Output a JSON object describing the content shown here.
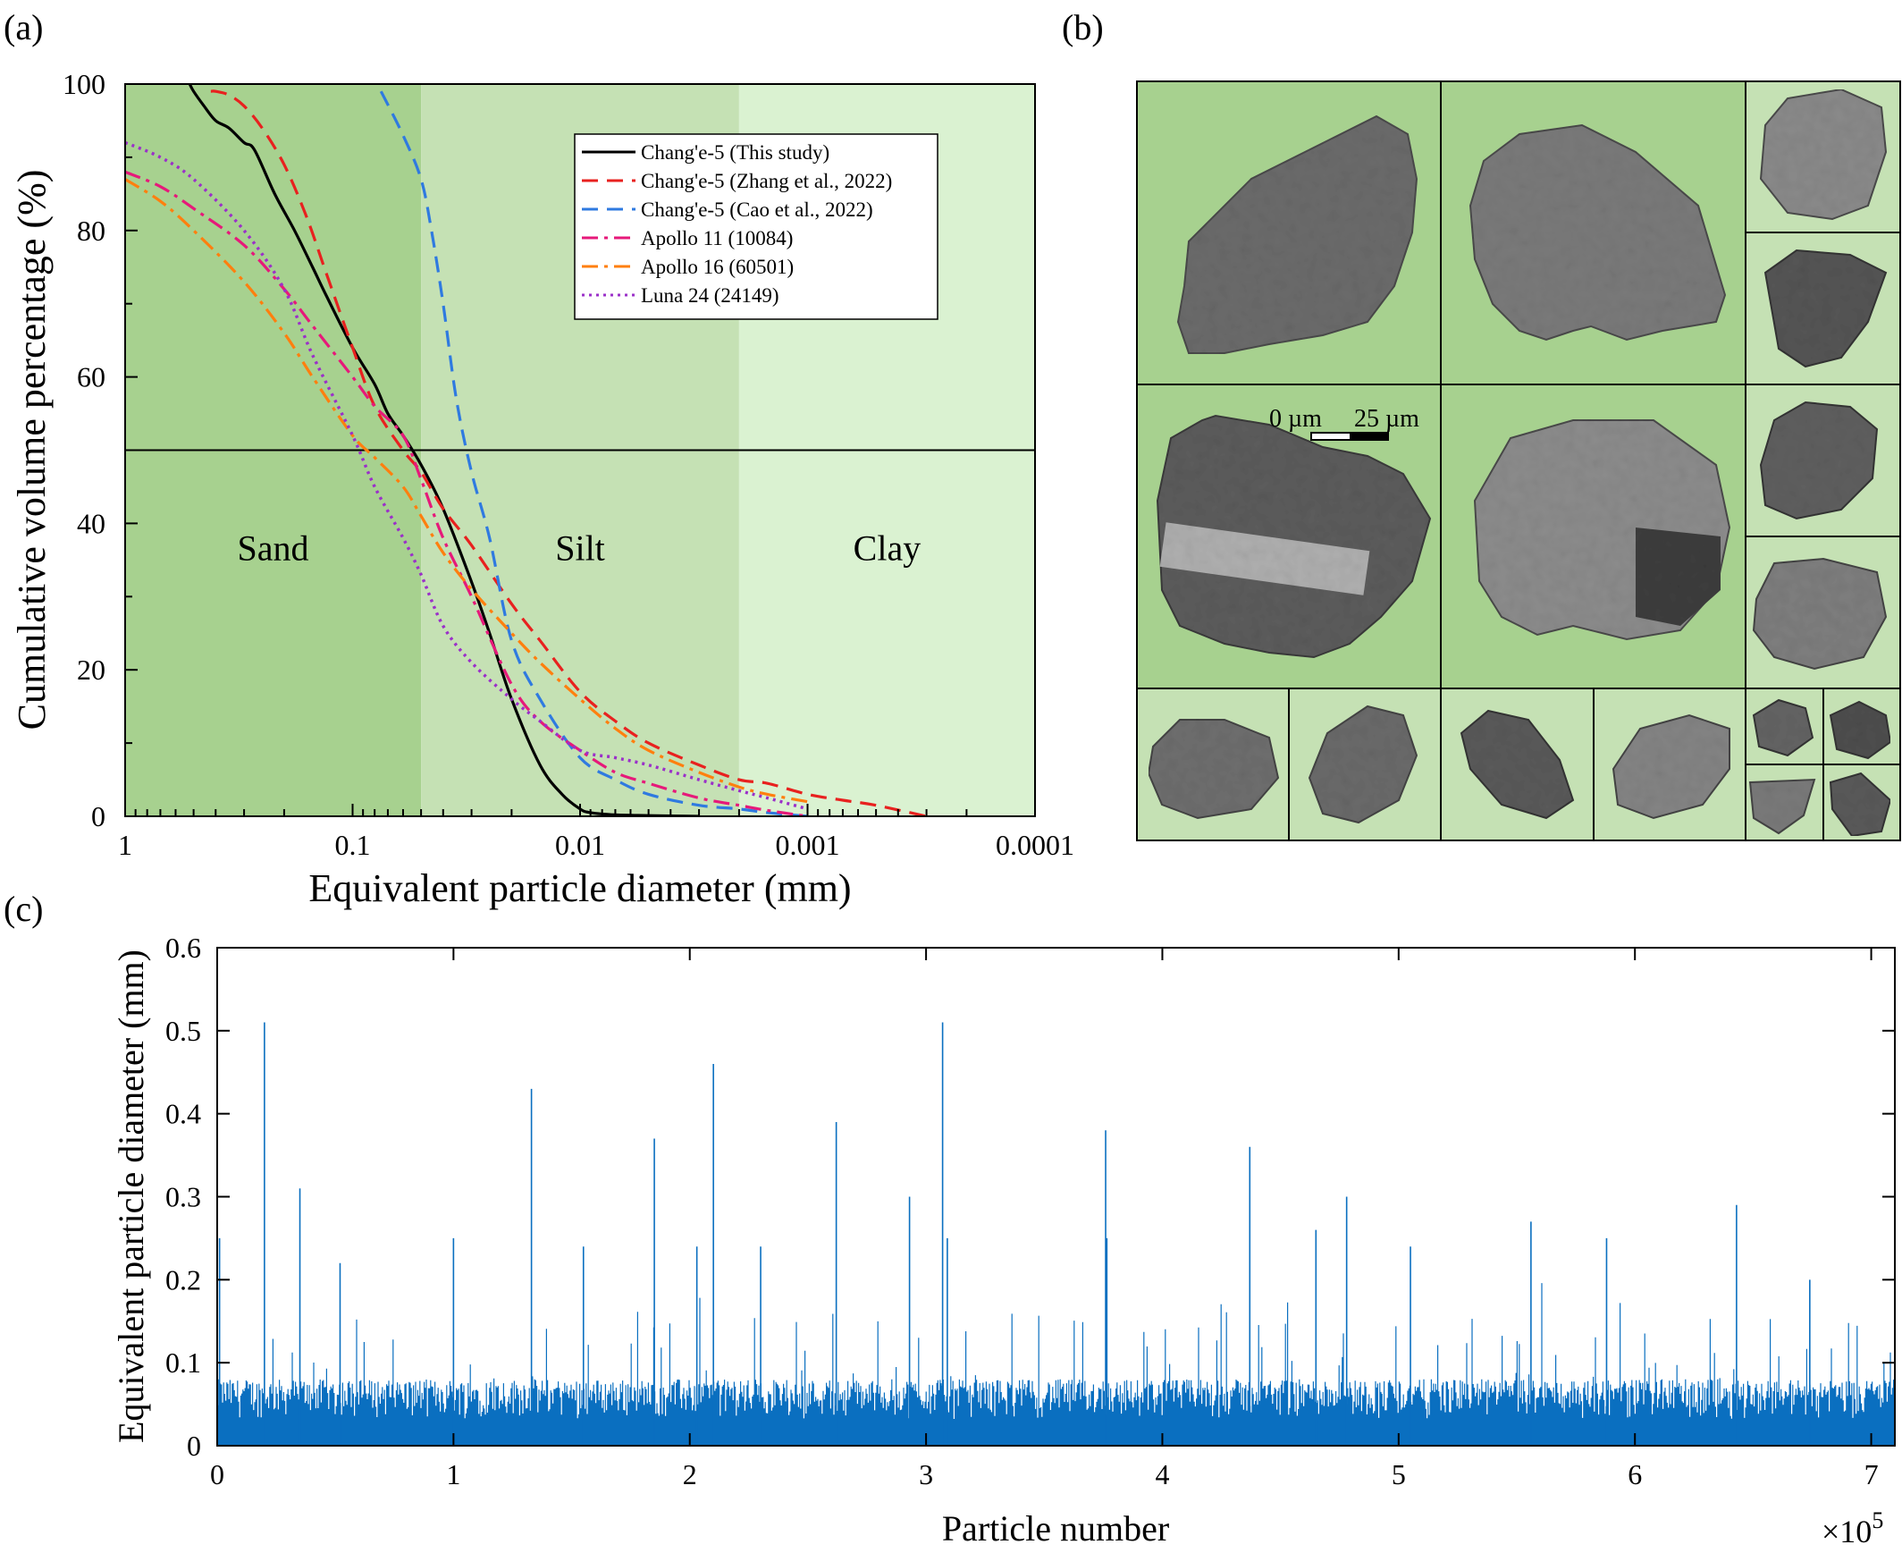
{
  "panel_labels": {
    "a": "(a)",
    "b": "(b)",
    "c": "(c)"
  },
  "colors": {
    "sand_zone": "#a7d18f",
    "silt_zone": "#c5e1b4",
    "clay_zone": "#daf2d1",
    "series_black": "#000000",
    "series_red": "#e8211f",
    "series_blue": "#2f7ae0",
    "series_pink": "#e6197a",
    "series_orange": "#ff7f0e",
    "series_purple": "#9b30c9",
    "bars": "#0a6fc0",
    "particle_bg": "#a7d18f",
    "particle_bg_light": "#c5e1b4"
  },
  "chart_data": [
    {
      "panel": "(a)",
      "type": "line",
      "title": "",
      "xlabel": "Equivalent particle diameter (mm)",
      "ylabel": "Cumulative volume percentage (%)",
      "xscale": "log",
      "xaxis_reversed": true,
      "xlim": [
        1,
        0.0001
      ],
      "ylim": [
        0,
        100
      ],
      "x_tick_labels": [
        "1",
        "0.1",
        "0.01",
        "0.001",
        "0.0001"
      ],
      "y_tick_labels": [
        "0",
        "20",
        "40",
        "60",
        "80",
        "100"
      ],
      "zones": [
        {
          "name": "Sand",
          "from": 1,
          "to": 0.05
        },
        {
          "name": "Silt",
          "from": 0.05,
          "to": 0.002
        },
        {
          "name": "Clay",
          "from": 0.002,
          "to": 0.0001
        }
      ],
      "reference_line_y": 50,
      "legend_position": "top-right",
      "series": [
        {
          "name": "Chang'e-5 (This study)",
          "style": "solid",
          "color": "#000000",
          "x": [
            0.52,
            0.5,
            0.45,
            0.4,
            0.35,
            0.3,
            0.27,
            0.22,
            0.18,
            0.15,
            0.13,
            0.1,
            0.08,
            0.07,
            0.06,
            0.05,
            0.04,
            0.03,
            0.025,
            0.02,
            0.015,
            0.012,
            0.01,
            0.009,
            0.007,
            0.005,
            0.003
          ],
          "y": [
            100,
            99,
            97,
            95,
            94,
            92,
            91,
            85,
            80,
            75,
            71,
            64,
            59,
            55,
            52,
            48,
            42,
            32,
            25,
            16,
            7,
            3,
            1,
            0.5,
            0.2,
            0.1,
            0
          ]
        },
        {
          "name": "Chang'e-5 (Zhang et al., 2022)",
          "style": "dashed",
          "color": "#e8211f",
          "x": [
            0.42,
            0.4,
            0.35,
            0.3,
            0.25,
            0.2,
            0.16,
            0.13,
            0.1,
            0.08,
            0.06,
            0.05,
            0.04,
            0.03,
            0.02,
            0.015,
            0.01,
            0.007,
            0.005,
            0.003,
            0.002,
            0.0015,
            0.001,
            0.0007,
            0.0005,
            0.0003
          ],
          "y": [
            99,
            99,
            98.5,
            97,
            94,
            89,
            82,
            74,
            64,
            56,
            50,
            47,
            42,
            37,
            29,
            24,
            17,
            13,
            10,
            7,
            5,
            4.5,
            3,
            2.2,
            1.5,
            0
          ]
        },
        {
          "name": "Chang'e-5 (Cao et al., 2022)",
          "style": "dashed",
          "color": "#2f7ae0",
          "x": [
            0.075,
            0.06,
            0.05,
            0.045,
            0.04,
            0.035,
            0.03,
            0.025,
            0.02,
            0.015,
            0.01,
            0.007,
            0.005,
            0.003,
            0.002,
            0.0015,
            0.001
          ],
          "y": [
            99,
            93,
            87,
            80,
            70,
            57,
            47,
            38,
            24,
            16,
            8,
            5,
            3,
            1.5,
            1,
            0.5,
            0
          ]
        },
        {
          "name": "Apollo 11 (10084)",
          "style": "dashdot",
          "color": "#e6197a",
          "x": [
            1,
            0.7,
            0.5,
            0.3,
            0.2,
            0.15,
            0.1,
            0.08,
            0.06,
            0.05,
            0.04,
            0.03,
            0.02,
            0.015,
            0.01,
            0.007,
            0.005,
            0.003,
            0.002,
            0.0015,
            0.001
          ],
          "y": [
            88,
            86,
            83,
            78,
            72,
            67,
            60,
            56,
            52,
            46,
            38,
            30,
            18,
            13,
            9,
            6,
            4.5,
            2.5,
            1.5,
            0.8,
            0
          ]
        },
        {
          "name": "Apollo 16 (60501)",
          "style": "dashdot",
          "color": "#ff7f0e",
          "x": [
            1,
            0.7,
            0.5,
            0.3,
            0.2,
            0.15,
            0.1,
            0.08,
            0.06,
            0.05,
            0.04,
            0.03,
            0.02,
            0.015,
            0.01,
            0.007,
            0.005,
            0.003,
            0.002,
            0.0015,
            0.001
          ],
          "y": [
            87,
            84,
            80,
            73,
            66,
            60,
            52,
            49,
            45,
            41,
            36,
            31,
            25,
            21,
            16,
            12,
            9,
            6,
            4,
            3,
            2
          ]
        },
        {
          "name": "Luna 24 (24149)",
          "style": "dotted",
          "color": "#9b30c9",
          "x": [
            1,
            0.7,
            0.5,
            0.3,
            0.2,
            0.15,
            0.1,
            0.08,
            0.06,
            0.05,
            0.04,
            0.03,
            0.02,
            0.015,
            0.01,
            0.007,
            0.005,
            0.003,
            0.002,
            0.0015,
            0.001
          ],
          "y": [
            92,
            90,
            87,
            80,
            72,
            63,
            52,
            45,
            38,
            33,
            26,
            21,
            16,
            13,
            9,
            8,
            7,
            5,
            3.5,
            2.5,
            1
          ]
        }
      ]
    },
    {
      "panel": "(c)",
      "type": "bar",
      "title": "",
      "xlabel": "Particle number",
      "ylabel": "Equivalent particle diameter (mm)",
      "x_multiplier_label": "×10",
      "x_multiplier_exponent": "5",
      "xlim": [
        0,
        710000
      ],
      "ylim": [
        0,
        0.6
      ],
      "x_tick_labels": [
        "0",
        "1",
        "2",
        "3",
        "4",
        "5",
        "6",
        "7"
      ],
      "y_tick_labels": [
        "0",
        "0.1",
        "0.2",
        "0.3",
        "0.4",
        "0.5",
        "0.6"
      ],
      "baseline_typical_max": 0.08,
      "peaks": [
        {
          "x": 1000,
          "y": 0.25
        },
        {
          "x": 20000,
          "y": 0.51
        },
        {
          "x": 35000,
          "y": 0.31
        },
        {
          "x": 52000,
          "y": 0.22
        },
        {
          "x": 100000,
          "y": 0.25
        },
        {
          "x": 133000,
          "y": 0.43
        },
        {
          "x": 155000,
          "y": 0.24
        },
        {
          "x": 185000,
          "y": 0.37
        },
        {
          "x": 203000,
          "y": 0.24
        },
        {
          "x": 210000,
          "y": 0.46
        },
        {
          "x": 230000,
          "y": 0.24
        },
        {
          "x": 262000,
          "y": 0.39
        },
        {
          "x": 293000,
          "y": 0.3
        },
        {
          "x": 307000,
          "y": 0.51
        },
        {
          "x": 309000,
          "y": 0.25
        },
        {
          "x": 376000,
          "y": 0.38
        },
        {
          "x": 376500,
          "y": 0.25
        },
        {
          "x": 437000,
          "y": 0.36
        },
        {
          "x": 465000,
          "y": 0.26
        },
        {
          "x": 478000,
          "y": 0.3
        },
        {
          "x": 505000,
          "y": 0.24
        },
        {
          "x": 556000,
          "y": 0.27
        },
        {
          "x": 588000,
          "y": 0.25
        },
        {
          "x": 643000,
          "y": 0.29
        },
        {
          "x": 674000,
          "y": 0.2
        }
      ]
    }
  ],
  "particle_panel": {
    "scale_bar_labels": [
      "0 µm",
      "25 µm"
    ]
  }
}
